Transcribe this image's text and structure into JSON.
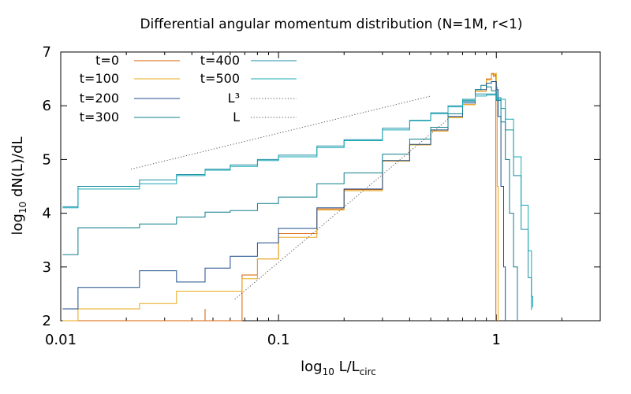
{
  "chart_data": {
    "type": "line",
    "title": "Differential angular momentum distribution (N=1M, r<1)",
    "xlabel": {
      "base": "log",
      "sub": "10",
      "mid": " L/L",
      "sub2": "circ"
    },
    "ylabel": {
      "base": "log",
      "sub": "10",
      "rest": " dN(L)/dL"
    },
    "xscale": "log",
    "xlim": [
      0.01,
      3.0
    ],
    "ylim": [
      2,
      7
    ],
    "xticks": [
      {
        "value": 0.01,
        "label": "0.01"
      },
      {
        "value": 0.1,
        "label": "0.1"
      },
      {
        "value": 1,
        "label": "1"
      }
    ],
    "yticks": [
      {
        "value": 2,
        "label": "2"
      },
      {
        "value": 3,
        "label": "3"
      },
      {
        "value": 4,
        "label": "4"
      },
      {
        "value": 5,
        "label": "5"
      },
      {
        "value": 6,
        "label": "6"
      },
      {
        "value": 7,
        "label": "7"
      }
    ],
    "legend_position": "top-left",
    "series": [
      {
        "name": "t=0",
        "color": "#d95f02",
        "style": "step",
        "points": [
          [
            0.0102,
            2.0
          ],
          [
            0.012,
            2.0
          ],
          [
            0.023,
            2.0
          ],
          [
            0.034,
            2.0
          ],
          [
            0.046,
            2.22
          ],
          [
            0.046,
            2.0
          ],
          [
            0.068,
            2.85
          ],
          [
            0.08,
            3.15
          ],
          [
            0.1,
            3.62
          ],
          [
            0.15,
            4.08
          ],
          [
            0.2,
            4.44
          ],
          [
            0.3,
            4.97
          ],
          [
            0.4,
            5.27
          ],
          [
            0.5,
            5.53
          ],
          [
            0.6,
            5.78
          ],
          [
            0.7,
            6.02
          ],
          [
            0.8,
            6.27
          ],
          [
            0.9,
            6.5
          ],
          [
            0.95,
            6.6
          ],
          [
            0.97,
            6.55
          ],
          [
            0.99,
            6.58
          ],
          [
            0.995,
            2.0
          ]
        ]
      },
      {
        "name": "t=100",
        "color": "#e6a817",
        "style": "step",
        "points": [
          [
            0.0102,
            2.0
          ],
          [
            0.012,
            2.22
          ],
          [
            0.023,
            2.22
          ],
          [
            0.023,
            2.32
          ],
          [
            0.034,
            2.32
          ],
          [
            0.034,
            2.55
          ],
          [
            0.046,
            2.55
          ],
          [
            0.068,
            2.78
          ],
          [
            0.08,
            3.15
          ],
          [
            0.1,
            3.55
          ],
          [
            0.15,
            4.06
          ],
          [
            0.2,
            4.42
          ],
          [
            0.3,
            4.97
          ],
          [
            0.4,
            5.27
          ],
          [
            0.5,
            5.53
          ],
          [
            0.6,
            5.78
          ],
          [
            0.7,
            6.02
          ],
          [
            0.8,
            6.27
          ],
          [
            0.9,
            6.48
          ],
          [
            0.95,
            6.58
          ],
          [
            0.98,
            6.6
          ],
          [
            1.0,
            6.35
          ],
          [
            1.01,
            4.5
          ],
          [
            1.02,
            2.0
          ]
        ]
      },
      {
        "name": "t=200",
        "color": "#1f4e8c",
        "style": "step",
        "points": [
          [
            0.0102,
            2.22
          ],
          [
            0.012,
            2.62
          ],
          [
            0.023,
            2.62
          ],
          [
            0.023,
            2.93
          ],
          [
            0.034,
            2.93
          ],
          [
            0.034,
            2.72
          ],
          [
            0.046,
            2.72
          ],
          [
            0.046,
            2.98
          ],
          [
            0.06,
            3.2
          ],
          [
            0.08,
            3.45
          ],
          [
            0.1,
            3.72
          ],
          [
            0.15,
            4.1
          ],
          [
            0.2,
            4.45
          ],
          [
            0.3,
            4.98
          ],
          [
            0.4,
            5.28
          ],
          [
            0.5,
            5.55
          ],
          [
            0.6,
            5.8
          ],
          [
            0.7,
            6.05
          ],
          [
            0.8,
            6.3
          ],
          [
            0.9,
            6.42
          ],
          [
            0.95,
            6.45
          ],
          [
            1.0,
            6.3
          ],
          [
            1.02,
            5.8
          ],
          [
            1.05,
            4.5
          ],
          [
            1.08,
            3.0
          ],
          [
            1.1,
            2.0
          ]
        ]
      },
      {
        "name": "t=300",
        "color": "#0d7d8c",
        "style": "step",
        "points": [
          [
            0.0102,
            3.23
          ],
          [
            0.012,
            3.73
          ],
          [
            0.023,
            3.8
          ],
          [
            0.034,
            3.93
          ],
          [
            0.046,
            4.02
          ],
          [
            0.06,
            4.05
          ],
          [
            0.08,
            4.18
          ],
          [
            0.1,
            4.3
          ],
          [
            0.15,
            4.55
          ],
          [
            0.2,
            4.75
          ],
          [
            0.3,
            5.1
          ],
          [
            0.4,
            5.38
          ],
          [
            0.5,
            5.6
          ],
          [
            0.6,
            5.85
          ],
          [
            0.7,
            6.08
          ],
          [
            0.8,
            6.3
          ],
          [
            0.85,
            6.38
          ],
          [
            0.9,
            6.35
          ],
          [
            0.95,
            6.28
          ],
          [
            1.0,
            6.1
          ],
          [
            1.05,
            5.7
          ],
          [
            1.1,
            5.0
          ],
          [
            1.15,
            4.0
          ],
          [
            1.2,
            3.0
          ],
          [
            1.25,
            2.0
          ]
        ]
      },
      {
        "name": "t=400",
        "color": "#1a8fa3",
        "style": "step",
        "points": [
          [
            0.0102,
            4.12
          ],
          [
            0.012,
            4.5
          ],
          [
            0.023,
            4.62
          ],
          [
            0.034,
            4.72
          ],
          [
            0.046,
            4.82
          ],
          [
            0.06,
            4.9
          ],
          [
            0.08,
            5.0
          ],
          [
            0.1,
            5.08
          ],
          [
            0.15,
            5.25
          ],
          [
            0.2,
            5.37
          ],
          [
            0.3,
            5.58
          ],
          [
            0.4,
            5.73
          ],
          [
            0.5,
            5.87
          ],
          [
            0.6,
            6.0
          ],
          [
            0.7,
            6.12
          ],
          [
            0.8,
            6.22
          ],
          [
            0.9,
            6.22
          ],
          [
            1.0,
            6.15
          ],
          [
            1.05,
            5.95
          ],
          [
            1.1,
            5.55
          ],
          [
            1.2,
            4.7
          ],
          [
            1.3,
            3.7
          ],
          [
            1.4,
            2.8
          ],
          [
            1.45,
            2.2
          ]
        ]
      },
      {
        "name": "t=500",
        "color": "#17a8b8",
        "style": "step",
        "points": [
          [
            0.0102,
            4.1
          ],
          [
            0.012,
            4.45
          ],
          [
            0.023,
            4.55
          ],
          [
            0.034,
            4.7
          ],
          [
            0.046,
            4.8
          ],
          [
            0.06,
            4.87
          ],
          [
            0.08,
            4.98
          ],
          [
            0.1,
            5.05
          ],
          [
            0.15,
            5.22
          ],
          [
            0.2,
            5.35
          ],
          [
            0.3,
            5.55
          ],
          [
            0.4,
            5.72
          ],
          [
            0.5,
            5.85
          ],
          [
            0.6,
            5.98
          ],
          [
            0.7,
            6.1
          ],
          [
            0.8,
            6.18
          ],
          [
            0.9,
            6.2
          ],
          [
            1.0,
            6.12
          ],
          [
            1.1,
            5.75
          ],
          [
            1.2,
            5.05
          ],
          [
            1.3,
            4.15
          ],
          [
            1.4,
            3.3
          ],
          [
            1.45,
            2.45
          ],
          [
            1.47,
            2.25
          ]
        ]
      },
      {
        "name": "L³",
        "color": "#555555",
        "style": "dotted",
        "points": [
          [
            0.063,
            2.4
          ],
          [
            0.6,
            5.75
          ]
        ]
      },
      {
        "name": "L",
        "color": "#555555",
        "style": "dotted",
        "points": [
          [
            0.021,
            4.82
          ],
          [
            0.5,
            6.18
          ]
        ]
      }
    ]
  }
}
